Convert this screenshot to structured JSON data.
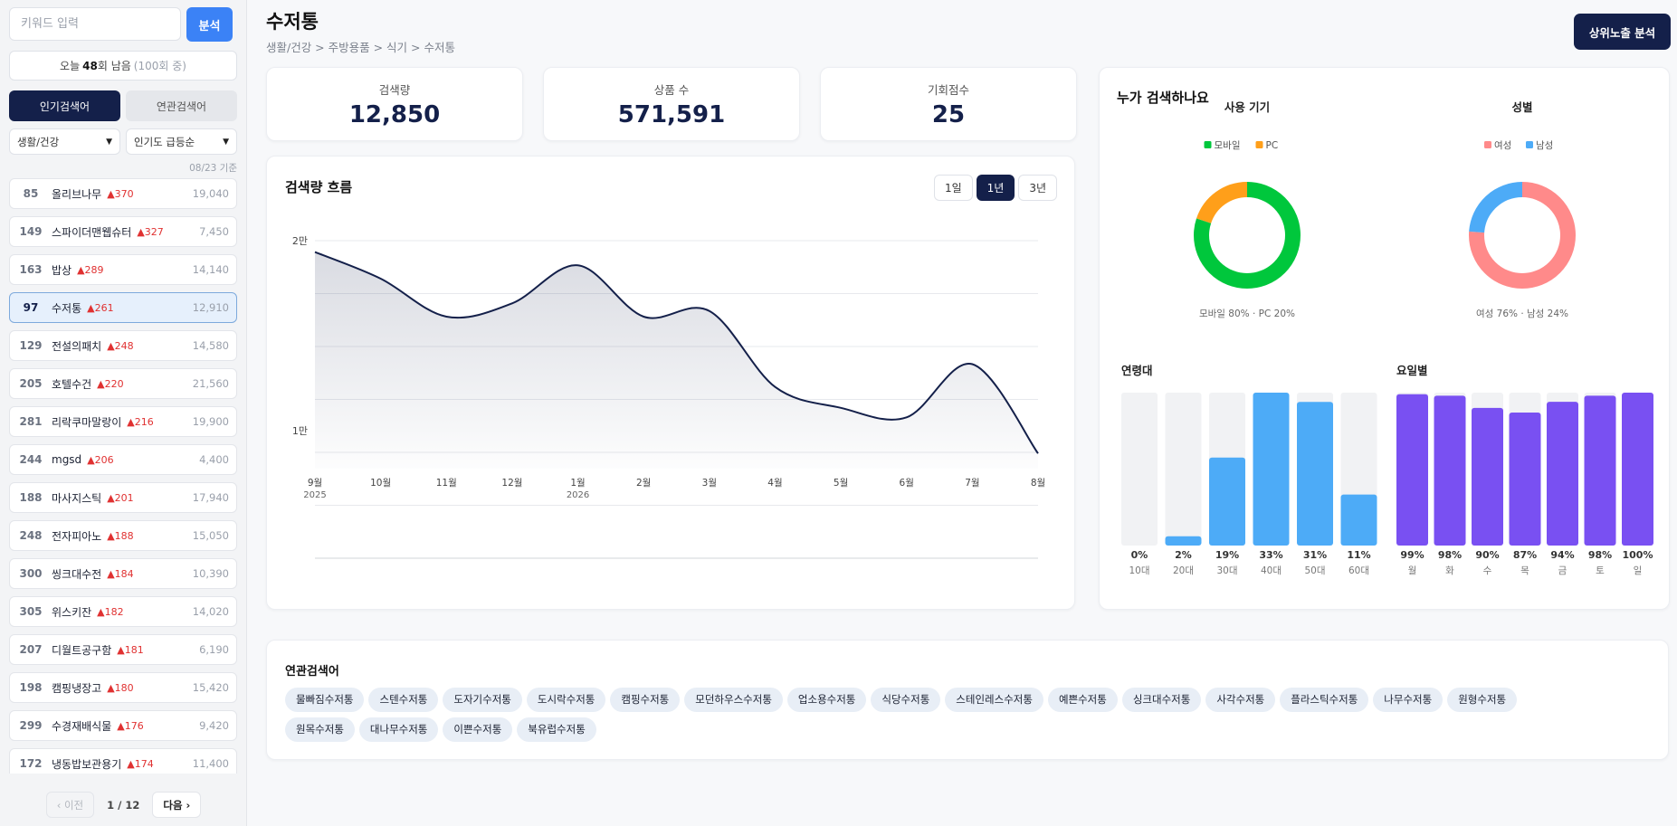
{
  "sidebar": {
    "search_placeholder": "키워드 입력",
    "analyze_label": "분석",
    "quota": {
      "prefix": "오늘",
      "count": "48",
      "suffix": "회 남음",
      "total": "(100회 중)"
    },
    "tabs": [
      {
        "label": "인기검색어"
      },
      {
        "label": "연관검색어"
      }
    ],
    "category_select": "생활/건강",
    "sort_select": "인기도 급등순",
    "date_note": "08/23 기준",
    "keywords": [
      {
        "rank": "85",
        "name": "올리브나무",
        "delta": "▲370",
        "count": "19,040"
      },
      {
        "rank": "149",
        "name": "스파이더맨웹슈터",
        "delta": "▲327",
        "count": "7,450"
      },
      {
        "rank": "163",
        "name": "밥상",
        "delta": "▲289",
        "count": "14,140"
      },
      {
        "rank": "97",
        "name": "수저통",
        "delta": "▲261",
        "count": "12,910"
      },
      {
        "rank": "129",
        "name": "전설의패치",
        "delta": "▲248",
        "count": "14,580"
      },
      {
        "rank": "205",
        "name": "호텔수건",
        "delta": "▲220",
        "count": "21,560"
      },
      {
        "rank": "281",
        "name": "리락쿠마말랑이",
        "delta": "▲216",
        "count": "19,900"
      },
      {
        "rank": "244",
        "name": "mgsd",
        "delta": "▲206",
        "count": "4,400"
      },
      {
        "rank": "188",
        "name": "마사지스틱",
        "delta": "▲201",
        "count": "17,940"
      },
      {
        "rank": "248",
        "name": "전자피아노",
        "delta": "▲188",
        "count": "15,050"
      },
      {
        "rank": "300",
        "name": "씽크대수전",
        "delta": "▲184",
        "count": "10,390"
      },
      {
        "rank": "305",
        "name": "위스키잔",
        "delta": "▲182",
        "count": "14,020"
      },
      {
        "rank": "207",
        "name": "디월트공구함",
        "delta": "▲181",
        "count": "6,190"
      },
      {
        "rank": "198",
        "name": "캠핑냉장고",
        "delta": "▲180",
        "count": "15,420"
      },
      {
        "rank": "299",
        "name": "수경재배식물",
        "delta": "▲176",
        "count": "9,420"
      },
      {
        "rank": "172",
        "name": "냉동밥보관용기",
        "delta": "▲174",
        "count": "11,400"
      }
    ],
    "pager": {
      "prev": "‹ 이전",
      "info": "1 / 12",
      "next": "다음 ›"
    }
  },
  "header": {
    "title": "수저통",
    "breadcrumb": "생활/건강 > 주방용품 > 식기 > 수저통",
    "top_button": "상위노출 분석"
  },
  "stats": [
    {
      "label": "검색량",
      "value": "12,850"
    },
    {
      "label": "상품 수",
      "value": "571,591"
    },
    {
      "label": "기회점수",
      "value": "25"
    }
  ],
  "trend": {
    "title": "검색량 흐름",
    "ranges": [
      "1일",
      "1년",
      "3년"
    ],
    "active_range": "1년"
  },
  "who": {
    "title": "누가 검색하나요",
    "device_title": "사용 기기",
    "gender_title": "성별",
    "device_caption": "모바일 80% · PC 20%",
    "gender_caption": "여성 76% · 남성 24%",
    "age_title": "연령대",
    "weekday_title": "요일별"
  },
  "related": {
    "title": "연관검색어",
    "tags": [
      "물빠짐수저통",
      "스텐수저통",
      "도자기수저통",
      "도시락수저통",
      "캠핑수저통",
      "모던하우스수저통",
      "업소용수저통",
      "식당수저통",
      "스테인레스수저통",
      "예쁜수저통",
      "싱크대수저통",
      "사각수저통",
      "플라스틱수저통",
      "나무수저통",
      "원형수저통",
      "원목수저통",
      "대나무수저통",
      "이쁜수저통",
      "북유럽수저통"
    ]
  },
  "colors": {
    "navy": "#14204a",
    "blue": "#3b82f6",
    "green": "#00c73c",
    "orange": "#ff9f1a",
    "pink": "#ff8a8a",
    "sky": "#4dabf7",
    "purple": "#7950f2"
  },
  "chart_data": [
    {
      "type": "line",
      "x": [
        "2025-09",
        "2025-10",
        "2025-11",
        "2025-12",
        "2026-01",
        "2026-02",
        "2026-03",
        "2026-04",
        "2026-05",
        "2026-06",
        "2026-07",
        "2026-08"
      ],
      "x_tick_labels": [
        [
          "9월",
          "2025"
        ],
        [
          "10월",
          ""
        ],
        [
          "11월",
          ""
        ],
        [
          "12월",
          ""
        ],
        [
          "1월",
          "2026"
        ],
        [
          "2월",
          ""
        ],
        [
          "3월",
          ""
        ],
        [
          "4월",
          ""
        ],
        [
          "5월",
          ""
        ],
        [
          "6월",
          ""
        ],
        [
          "7월",
          ""
        ],
        [
          "8월",
          ""
        ]
      ],
      "series": [
        {
          "values": [
            19400,
            18000,
            16000,
            16700,
            18700,
            16000,
            16300,
            12300,
            11200,
            10700,
            13500,
            8800
          ]
        }
      ],
      "y_tick_labels": [
        "2만",
        "1만"
      ],
      "y_ticks": [
        20000,
        10000
      ],
      "ylim": [
        8000,
        20000
      ],
      "grid": true
    },
    {
      "type": "pie",
      "legend": [
        "모바일",
        "PC"
      ],
      "values": [
        80,
        20
      ],
      "colors": [
        "#00c73c",
        "#ff9f1a"
      ]
    },
    {
      "type": "pie",
      "legend": [
        "여성",
        "남성"
      ],
      "values": [
        76,
        24
      ],
      "colors": [
        "#ff8a8a",
        "#4dabf7"
      ]
    },
    {
      "type": "bar",
      "categories": [
        "10대",
        "20대",
        "30대",
        "40대",
        "50대",
        "60대"
      ],
      "values": [
        0,
        2,
        19,
        33,
        31,
        11
      ],
      "value_labels": [
        "0%",
        "2%",
        "19%",
        "33%",
        "31%",
        "11%"
      ],
      "max": 33,
      "color": "#4dabf7"
    },
    {
      "type": "bar",
      "categories": [
        "월",
        "화",
        "수",
        "목",
        "금",
        "토",
        "일"
      ],
      "values": [
        99,
        98,
        90,
        87,
        94,
        98,
        100
      ],
      "value_labels": [
        "99%",
        "98%",
        "90%",
        "87%",
        "94%",
        "98%",
        "100%"
      ],
      "max": 100,
      "color": "#7950f2"
    }
  ]
}
